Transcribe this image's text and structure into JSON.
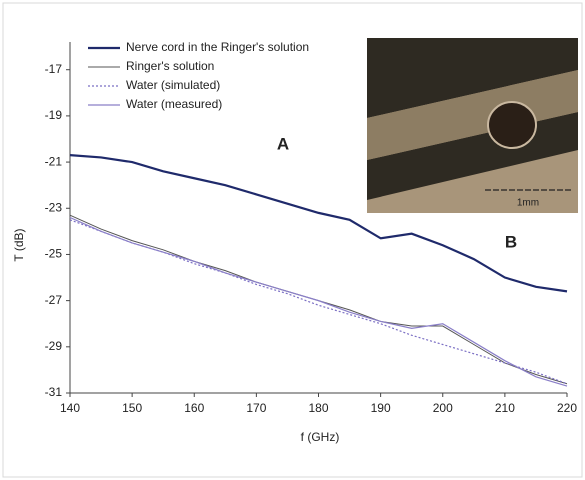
{
  "chart_data": {
    "type": "line",
    "x_label": "f (GHz)",
    "y_label": "T (dB)",
    "x": [
      140,
      145,
      150,
      155,
      160,
      165,
      170,
      175,
      180,
      185,
      190,
      195,
      200,
      205,
      210,
      215,
      220
    ],
    "series": [
      {
        "name": "Nerve cord in the Ringer's solution",
        "color": "#1f2a6b",
        "width": 2.2,
        "dash": "solid",
        "values": [
          -20.7,
          -20.8,
          -21.0,
          -21.4,
          -21.7,
          -22.0,
          -22.4,
          -22.8,
          -23.2,
          -23.5,
          -24.3,
          -24.1,
          -24.6,
          -25.2,
          -26.0,
          -26.4,
          -26.6
        ]
      },
      {
        "name": "Ringer's solution",
        "color": "#555555",
        "width": 1,
        "dash": "solid",
        "values": [
          -23.3,
          -23.9,
          -24.4,
          -24.8,
          -25.3,
          -25.7,
          -26.2,
          -26.6,
          -27.0,
          -27.4,
          -27.9,
          -28.1,
          -28.1,
          -28.9,
          -29.7,
          -30.2,
          -30.6
        ]
      },
      {
        "name": "Water (simulated)",
        "color": "#7b6fc4",
        "width": 1.2,
        "dash": "dotted",
        "values": [
          -23.5,
          -24.0,
          -24.5,
          -24.9,
          -25.4,
          -25.8,
          -26.3,
          -26.7,
          -27.2,
          -27.6,
          -28.0,
          -28.5,
          -28.9,
          -29.3,
          -29.7,
          -30.1,
          -30.6
        ]
      },
      {
        "name": "Water (measured)",
        "color": "#8a7fc8",
        "width": 1.2,
        "dash": "solid",
        "values": [
          -23.4,
          -24.0,
          -24.5,
          -24.9,
          -25.3,
          -25.8,
          -26.2,
          -26.6,
          -27.0,
          -27.5,
          -27.9,
          -28.2,
          -28.0,
          -28.8,
          -29.6,
          -30.3,
          -30.7
        ]
      }
    ],
    "xlim": [
      140,
      220
    ],
    "xticks": [
      140,
      150,
      160,
      170,
      180,
      190,
      200,
      210,
      220
    ],
    "ylim": [
      -31,
      -15.8
    ],
    "yticks": [
      -17,
      -19,
      -21,
      -23,
      -25,
      -27,
      -29,
      -31
    ],
    "annotations": [
      "A",
      "B"
    ],
    "inset_scale_label": "1mm"
  }
}
